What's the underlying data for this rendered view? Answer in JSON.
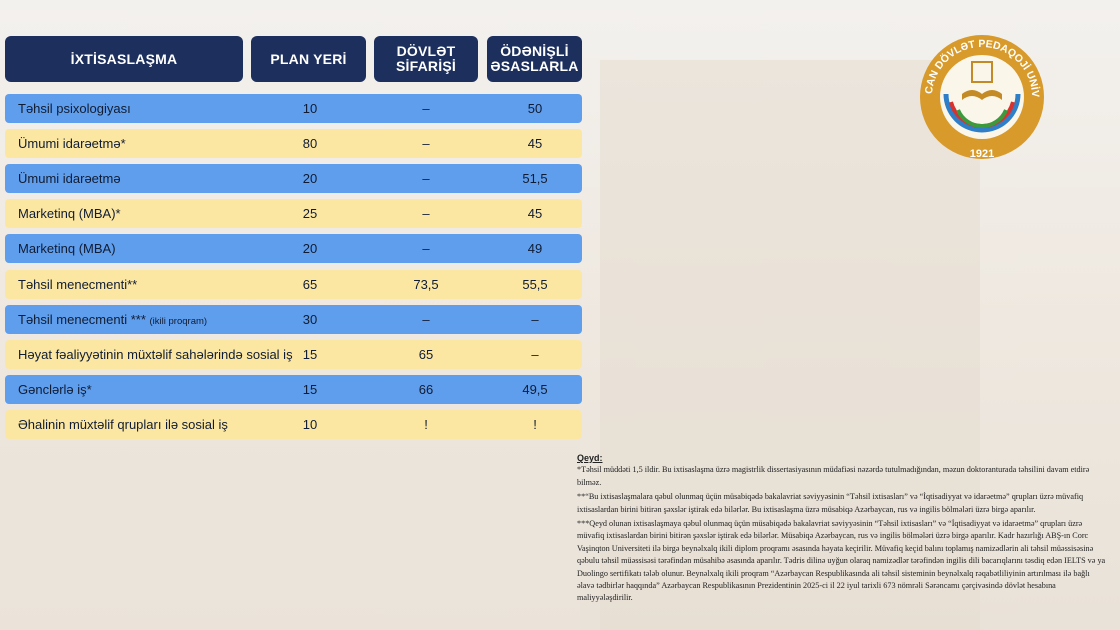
{
  "header": {
    "columns": [
      {
        "lines": [
          "İXTİSASLAŞMA"
        ]
      },
      {
        "lines": [
          "PLAN YERİ"
        ]
      },
      {
        "lines": [
          "DÖVLƏT",
          "SİFARİŞİ"
        ]
      },
      {
        "lines": [
          "ÖDƏNİŞLİ",
          "ƏSASLARLA"
        ]
      }
    ]
  },
  "table": {
    "rows": [
      {
        "name": "Təhsil psixologiyası",
        "plan": "10",
        "state": "–",
        "paid": "50"
      },
      {
        "name": "Ümumi idarəetmə*",
        "plan": "80",
        "state": "–",
        "paid": "45"
      },
      {
        "name": "Ümumi idarəetmə",
        "plan": "20",
        "state": "–",
        "paid": "51,5"
      },
      {
        "name": "Marketinq (MBA)*",
        "plan": "25",
        "state": "–",
        "paid": "45"
      },
      {
        "name": "Marketinq (MBA)",
        "plan": "20",
        "state": "–",
        "paid": "49"
      },
      {
        "name": "Təhsil menecmenti**",
        "plan": "65",
        "state": "73,5",
        "paid": "55,5"
      },
      {
        "name": "Təhsil menecmenti ***",
        "note": "(ikili proqram)",
        "plan": "30",
        "state": "–",
        "paid": "–"
      },
      {
        "name": "Həyat fəaliyyətinin müxtəlif sahələrində sosial iş",
        "plan": "15",
        "state": "65",
        "paid": "–"
      },
      {
        "name": "Gənclərlə iş*",
        "plan": "15",
        "state": "66",
        "paid": "49,5"
      },
      {
        "name": "Əhalinin müxtəlif qrupları ilə sosial iş",
        "plan": "10",
        "state": "!",
        "paid": "!"
      }
    ]
  },
  "notes": {
    "title": "Qeyd:",
    "items": [
      "*Təhsil müddəti 1,5 ildir. Bu ixtisaslaşma üzrə magistrlik dissertasiyasının müdafiəsi nəzərdə tutulmadığından, məzun doktoranturada təhsilini davam etdirə bilməz.",
      "**“Bu ixtisaslaşmalara qəbul olunmaq üçün müsabiqədə bakalavriat səviyyəsinin “Təhsil ixtisasları” və “İqtisadiyyat və idarəetmə” qrupları üzrə müvafiq ixtisaslardan birini bitirən şəxslər iştirak edə bilərlər. Bu ixtisaslaşma üzrə müsabiqə Azərbaycan, rus və ingilis bölmələri üzrə birgə aparılır.",
      "***Qeyd olunan ixtisaslaşmaya qəbul olunmaq üçün müsabiqədə bakalavriat səviyyəsinin “Təhsil ixtisasları” və “İqtisadiyyat və idarəetmə” qrupları üzrə müvafiq ixtisaslardan birini bitirən şəxslər iştirak edə bilərlər. Müsabiqə Azərbaycan, rus və ingilis bölmələri üzrə birgə aparılır. Kadr hazırlığı ABŞ-ın Corc Vaşinqton Universiteti ilə birgə beynəlxalq ikili diplom proqramı əsasında həyata keçirilir. Müvafiq keçid balını toplamış namizədlərin ali təhsil müəssisəsinə qəbulu təhsil müəssisəsi tərəfindən müsahibə əsasında aparılır. Tədris dilinə uyğun olaraq namizədlər tərəfindən ingilis dili bacarıqlarını təsdiq edən IELTS və ya Duolingo sertifikatı tələb olunur. Beynəlxalq ikili proqram “Azərbaycan Respublikasında ali təhsil sisteminin beynəlxalq rəqabətliliyinin artırılması ilə bağlı əlavə tədbirlər haqqında” Azərbaycan Respublikasının Prezidentinin 2025-ci il 22 iyul tarixli 673 nömrəli Sərəncamı çərçivəsində dövlət hesabına maliyyələşdirilir."
    ]
  },
  "logo": {
    "name": "AZƏRBAYCAN DÖVLƏT PEDAQOJİ UNİVERSİTETİ",
    "year": "1921"
  }
}
